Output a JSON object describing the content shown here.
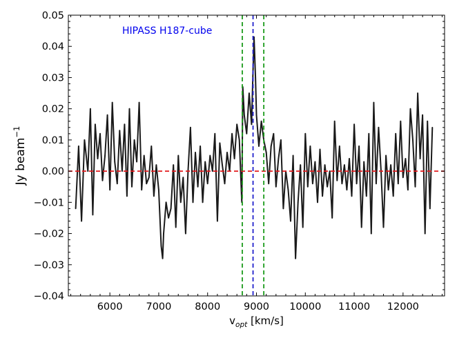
{
  "chart_data": {
    "type": "line",
    "title": "",
    "annotation": "HIPASS H187-cube",
    "annotation_color": "#0000ee",
    "xlabel": {
      "main": "v",
      "sub": "opt",
      "unit": " [km/s]"
    },
    "ylabel": {
      "main": "Jy beam",
      "sup": "−1"
    },
    "xlim": [
      5150,
      12850
    ],
    "ylim": [
      -0.04,
      0.05
    ],
    "x_ticks": [
      6000,
      7000,
      8000,
      9000,
      10000,
      11000,
      12000
    ],
    "x_tick_labels": [
      "6000",
      "7000",
      "8000",
      "9000",
      "10000",
      "11000",
      "12000"
    ],
    "y_ticks": [
      -0.04,
      -0.03,
      -0.02,
      -0.01,
      0.0,
      0.01,
      0.02,
      0.03,
      0.04,
      0.05
    ],
    "y_tick_labels": [
      "−0.04",
      "−0.03",
      "−0.02",
      "−0.01",
      "0.00",
      "0.01",
      "0.02",
      "0.03",
      "0.04",
      "0.05"
    ],
    "grid": false,
    "series": [
      {
        "color": "#1a1a1a",
        "x": [
          5300,
          5360,
          5420,
          5480,
          5550,
          5600,
          5650,
          5700,
          5750,
          5800,
          5850,
          5900,
          5950,
          6000,
          6050,
          6100,
          6150,
          6200,
          6250,
          6300,
          6350,
          6400,
          6450,
          6500,
          6550,
          6600,
          6650,
          6700,
          6750,
          6800,
          6850,
          6900,
          6950,
          7000,
          7050,
          7080,
          7100,
          7150,
          7200,
          7250,
          7300,
          7350,
          7400,
          7450,
          7500,
          7550,
          7600,
          7650,
          7700,
          7750,
          7800,
          7850,
          7900,
          7950,
          8000,
          8050,
          8100,
          8150,
          8200,
          8250,
          8300,
          8350,
          8400,
          8450,
          8500,
          8550,
          8600,
          8650,
          8700,
          8720,
          8750,
          8800,
          8850,
          8900,
          8930,
          8950,
          8980,
          9000,
          9050,
          9100,
          9150,
          9200,
          9250,
          9300,
          9350,
          9400,
          9450,
          9500,
          9550,
          9600,
          9650,
          9700,
          9750,
          9800,
          9850,
          9900,
          9950,
          10000,
          10050,
          10100,
          10150,
          10200,
          10250,
          10300,
          10350,
          10400,
          10450,
          10500,
          10550,
          10600,
          10650,
          10700,
          10750,
          10800,
          10850,
          10900,
          10950,
          11000,
          11050,
          11100,
          11150,
          11200,
          11250,
          11300,
          11350,
          11400,
          11450,
          11500,
          11550,
          11600,
          11650,
          11700,
          11750,
          11800,
          11850,
          11900,
          11950,
          12000,
          12050,
          12100,
          12150,
          12200,
          12250,
          12300,
          12350,
          12400,
          12450,
          12500,
          12550,
          12600
        ],
        "y": [
          -0.012,
          0.008,
          -0.016,
          0.01,
          0.0,
          0.02,
          -0.014,
          0.015,
          0.004,
          0.012,
          -0.003,
          0.005,
          0.018,
          -0.006,
          0.022,
          0.003,
          -0.004,
          0.013,
          0.0,
          0.015,
          -0.008,
          0.02,
          -0.005,
          0.01,
          0.003,
          0.022,
          -0.006,
          0.005,
          -0.004,
          -0.002,
          0.008,
          -0.008,
          0.002,
          -0.006,
          -0.024,
          -0.028,
          -0.02,
          -0.01,
          -0.015,
          -0.012,
          0.002,
          -0.018,
          0.005,
          -0.01,
          -0.002,
          -0.02,
          0.0,
          0.014,
          -0.01,
          0.006,
          -0.005,
          0.008,
          -0.01,
          0.003,
          -0.004,
          0.005,
          0.0,
          0.012,
          -0.016,
          0.009,
          0.002,
          -0.004,
          0.006,
          0.0,
          0.012,
          0.004,
          0.015,
          0.01,
          -0.01,
          0.027,
          0.018,
          0.012,
          0.025,
          0.015,
          0.032,
          0.043,
          0.03,
          0.018,
          0.008,
          0.016,
          0.01,
          0.006,
          -0.004,
          0.008,
          0.012,
          -0.005,
          0.004,
          0.01,
          -0.012,
          0.0,
          -0.006,
          -0.016,
          0.005,
          -0.028,
          -0.01,
          0.002,
          -0.018,
          0.012,
          -0.005,
          0.008,
          -0.004,
          0.003,
          -0.01,
          0.007,
          -0.008,
          0.002,
          -0.005,
          0.0,
          -0.015,
          0.016,
          -0.003,
          0.008,
          -0.004,
          0.002,
          -0.006,
          0.004,
          -0.008,
          0.015,
          -0.004,
          0.008,
          -0.018,
          0.003,
          -0.008,
          0.012,
          -0.02,
          0.022,
          -0.004,
          0.014,
          0.0,
          -0.018,
          0.005,
          -0.006,
          0.002,
          -0.008,
          0.012,
          -0.004,
          0.016,
          -0.002,
          0.004,
          -0.006,
          0.02,
          0.01,
          -0.005,
          0.025,
          0.004,
          0.018,
          -0.02,
          0.016,
          -0.012,
          0.014
        ]
      }
    ],
    "reference_lines": [
      {
        "orientation": "horizontal",
        "value": 0.0,
        "color": "#e31a1c",
        "style": "dashed"
      },
      {
        "orientation": "vertical",
        "value": 8930,
        "color": "#1f1fcc",
        "style": "dashed"
      },
      {
        "orientation": "vertical",
        "value": 8710,
        "color": "#1a9a1a",
        "style": "dashed"
      },
      {
        "orientation": "vertical",
        "value": 9150,
        "color": "#1a9a1a",
        "style": "dashed"
      }
    ]
  }
}
